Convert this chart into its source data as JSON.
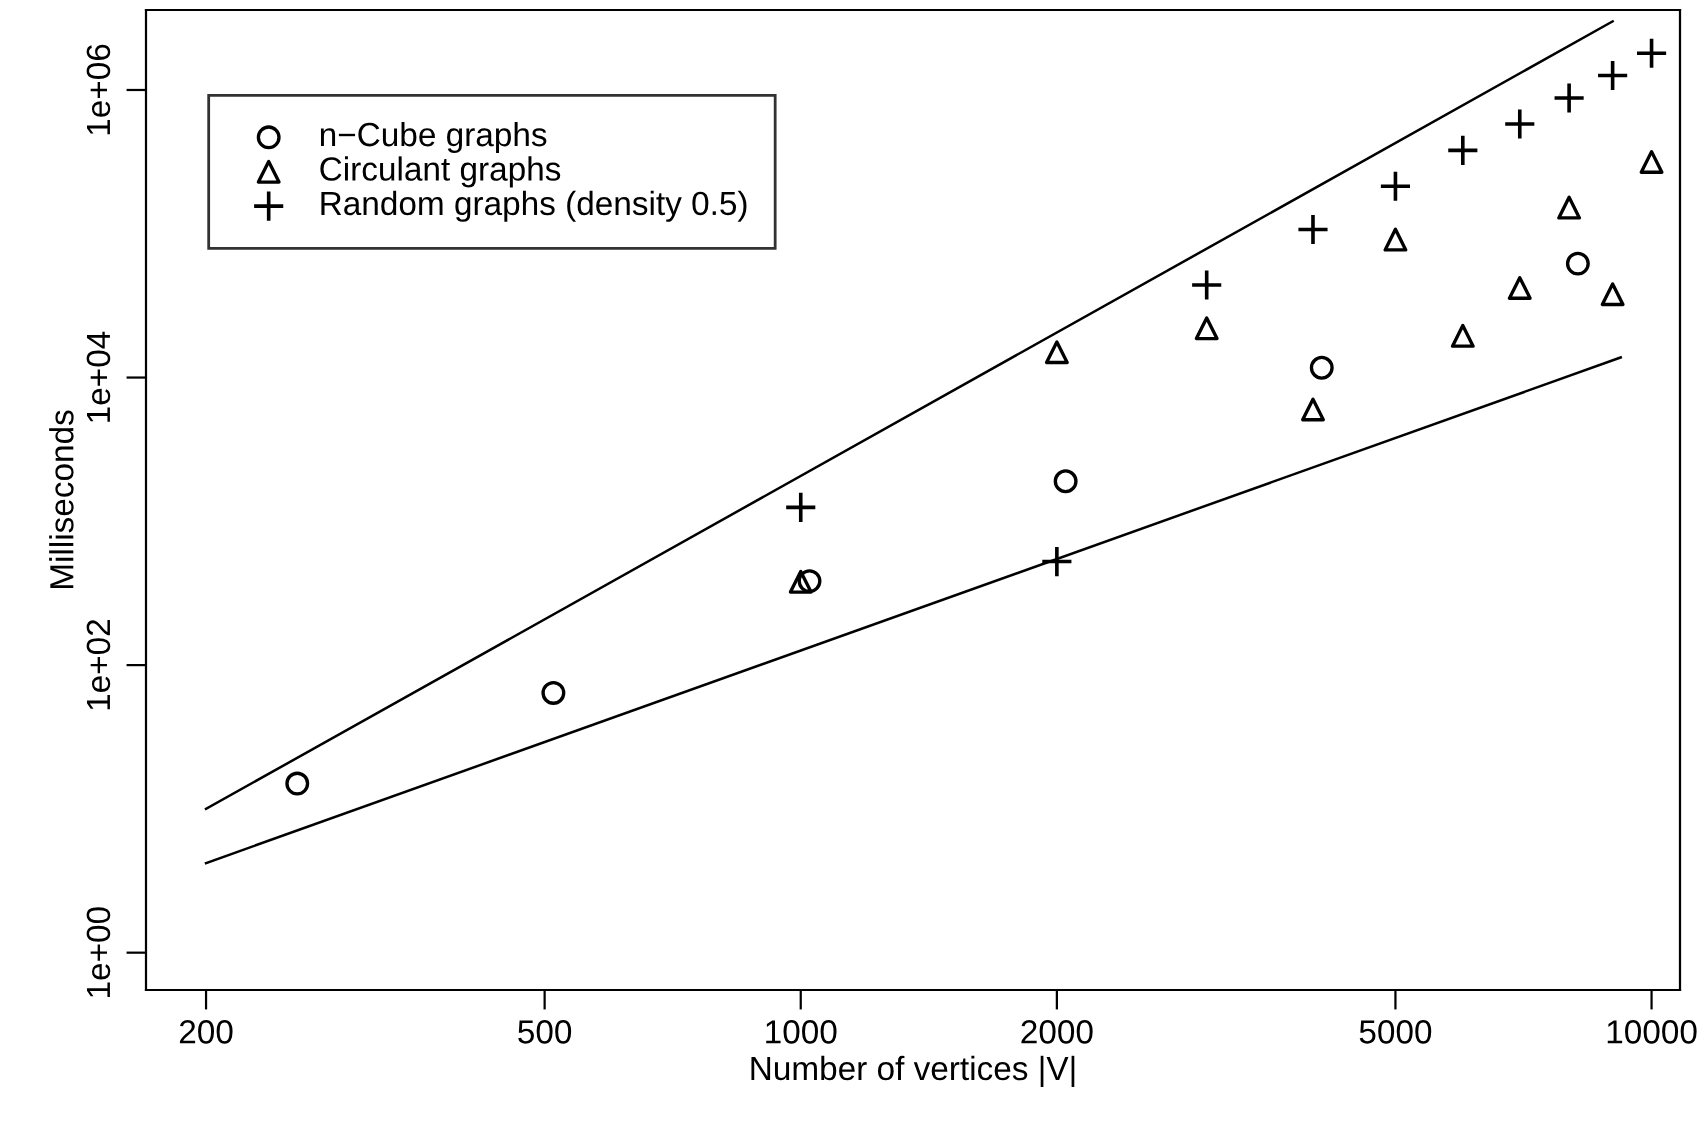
{
  "chart_data": {
    "type": "scatter",
    "xlabel": "Number of vertices |V|",
    "ylabel": "Milliseconds",
    "log": "xy",
    "xlim": [
      170,
      10800
    ],
    "ylim": [
      0.55,
      3600000
    ],
    "xticks": [
      200,
      500,
      1000,
      2000,
      5000,
      10000
    ],
    "yticks": [
      {
        "value": 1,
        "label": "1e+00"
      },
      {
        "value": 100,
        "label": "1e+02"
      },
      {
        "value": 10000,
        "label": "1e+04"
      },
      {
        "value": 1000000,
        "label": "1e+06"
      }
    ],
    "grid": false,
    "legend": "top left",
    "series": [
      {
        "name": "n−Cube graphs",
        "color": "#000000",
        "marker": "circle",
        "x": [
          256,
          512,
          1024,
          2048,
          4096,
          8192
        ],
        "values": [
          15,
          64,
          384,
          1900,
          11700,
          62000
        ]
      },
      {
        "name": "Circulant graphs",
        "color": "#000000",
        "marker": "triangle",
        "x": [
          1000,
          2000,
          3000,
          4000,
          5000,
          6000,
          7000,
          8000,
          9000,
          10000
        ],
        "values": [
          380,
          15000,
          22000,
          6000,
          91000,
          19500,
          42000,
          152000,
          38000,
          316000
        ]
      },
      {
        "name": "Random graphs (density 0.5)",
        "color": "#000000",
        "marker": "cross",
        "x": [
          1000,
          2000,
          3000,
          4000,
          5000,
          6000,
          7000,
          8000,
          9000,
          10000
        ],
        "values": [
          1250,
          525,
          44000,
          107000,
          214000,
          380000,
          580000,
          880000,
          1260000,
          1800000
        ]
      },
      {
        "type": "line",
        "color": "#000000",
        "x": [
          200,
          9000
        ],
        "values": [
          10,
          3000000
        ]
      },
      {
        "type": "line",
        "color": "#000000",
        "x": [
          200,
          9200
        ],
        "values": [
          4.2,
          13800
        ]
      }
    ]
  }
}
